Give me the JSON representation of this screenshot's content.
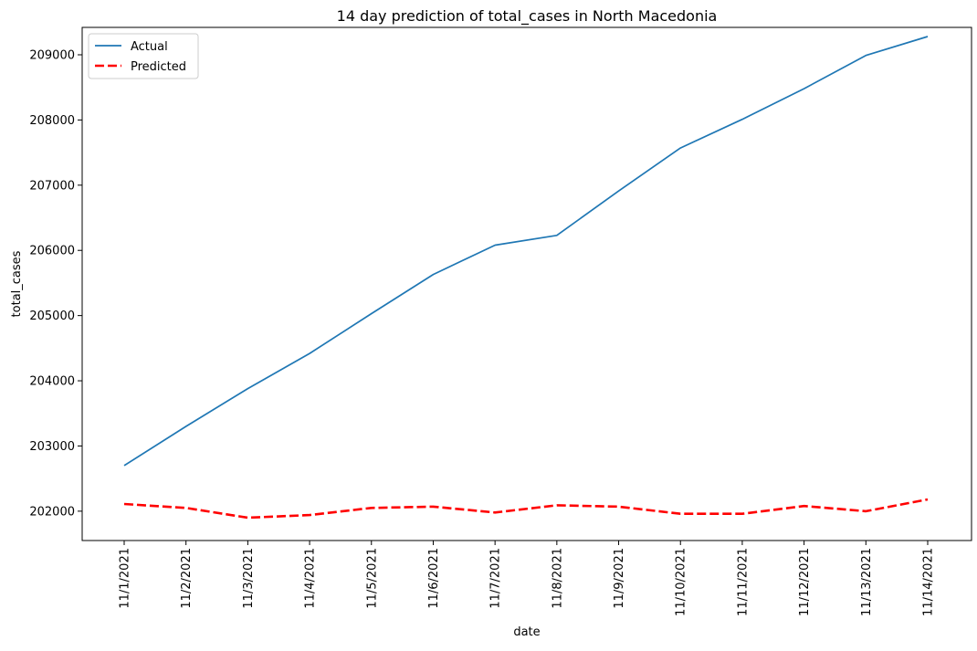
{
  "chart_data": {
    "type": "line",
    "title": "14 day prediction of total_cases in North Macedonia",
    "xlabel": "date",
    "ylabel": "total_cases",
    "categories": [
      "11/1/2021",
      "11/2/2021",
      "11/3/2021",
      "11/4/2021",
      "11/5/2021",
      "11/6/2021",
      "11/7/2021",
      "11/8/2021",
      "11/9/2021",
      "11/10/2021",
      "11/11/2021",
      "11/12/2021",
      "11/13/2021",
      "11/14/2021"
    ],
    "y_ticks": [
      202000,
      203000,
      204000,
      205000,
      206000,
      207000,
      208000,
      209000
    ],
    "ylim": [
      201550,
      209420
    ],
    "grid": false,
    "legend_position": "top-left",
    "series": [
      {
        "name": "Actual",
        "color": "#1f77b4",
        "style": "solid",
        "values": [
          202700,
          203300,
          203880,
          204420,
          205030,
          205630,
          206080,
          206230,
          206910,
          207570,
          208010,
          208480,
          208990,
          209280
        ]
      },
      {
        "name": "Predicted",
        "color": "#ff0000",
        "style": "dashed",
        "values": [
          202110,
          202050,
          201900,
          201940,
          202050,
          202070,
          201980,
          202090,
          202070,
          201960,
          201960,
          202080,
          202000,
          202180
        ]
      }
    ]
  }
}
